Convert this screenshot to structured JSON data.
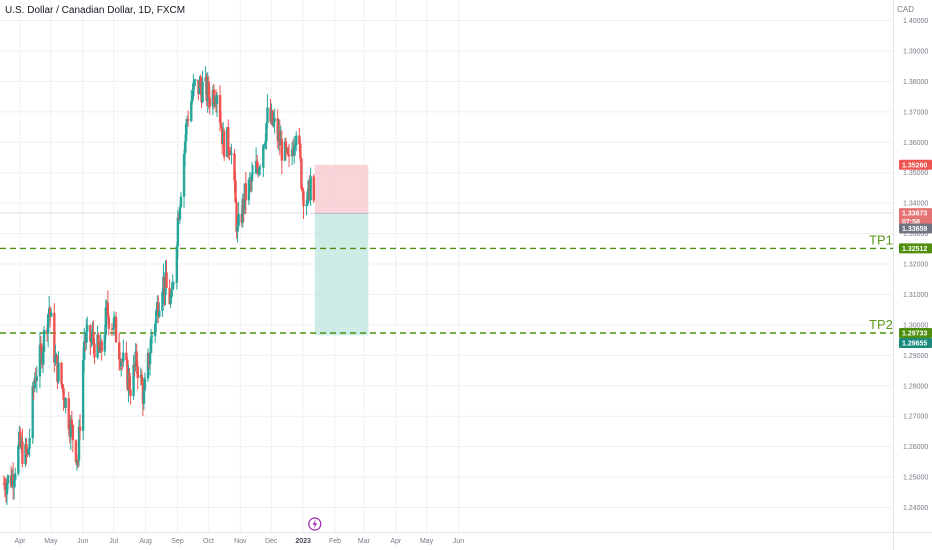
{
  "header": {
    "title": "U.S. Dollar / Canadian Dollar, 1D, FXCM",
    "currency": "CAD"
  },
  "colors": {
    "up": "#26a69a",
    "down": "#ef5350",
    "tp_line": "#4f8f0d",
    "tp_text": "#5b9a1b",
    "stop_zone": "#f8c9cf",
    "profit_zone": "#c5e8e2",
    "badge_stop": "#ef5350",
    "badge_last": "#e57373",
    "badge_entry": "#6f7480",
    "badge_tp1": "#4f8f0d",
    "badge_tp2_a": "#4f8f0d",
    "badge_tp2_b": "#1b8a7d",
    "grid": "#eef0f3"
  },
  "icons": {
    "event_marker": "lightning-icon"
  },
  "chart_data": {
    "type": "candlestick",
    "title": "U.S. Dollar / Canadian Dollar, 1D, FXCM",
    "ylim": [
      1.235,
      1.402
    ],
    "y_ticks": [
      "1.24000",
      "1.25000",
      "1.26000",
      "1.27000",
      "1.28000",
      "1.29000",
      "1.30000",
      "1.31000",
      "1.32000",
      "1.33000",
      "1.34000",
      "1.35000",
      "1.36000",
      "1.37000",
      "1.38000",
      "1.39000",
      "1.40000"
    ],
    "x_ticks": [
      "Apr",
      "May",
      "Jun",
      "Jul",
      "Aug",
      "Sep",
      "Oct",
      "Nov",
      "Dec",
      "2023",
      "Feb",
      "Mar",
      "Apr",
      "May",
      "Jun"
    ],
    "x_ticks_bold": [
      "2023"
    ],
    "price_path": [
      [
        "2022-03-28",
        1.248
      ],
      [
        "2022-04-05",
        1.25
      ],
      [
        "2022-04-12",
        1.26
      ],
      [
        "2022-04-20",
        1.256
      ],
      [
        "2022-04-27",
        1.283
      ],
      [
        "2022-05-03",
        1.29
      ],
      [
        "2022-05-11",
        1.306
      ],
      [
        "2022-05-17",
        1.288
      ],
      [
        "2022-05-25",
        1.278
      ],
      [
        "2022-05-31",
        1.268
      ],
      [
        "2022-06-08",
        1.256
      ],
      [
        "2022-06-14",
        1.295
      ],
      [
        "2022-06-22",
        1.295
      ],
      [
        "2022-06-30",
        1.29
      ],
      [
        "2022-07-06",
        1.304
      ],
      [
        "2022-07-13",
        1.3
      ],
      [
        "2022-07-21",
        1.288
      ],
      [
        "2022-07-29",
        1.28
      ],
      [
        "2022-08-04",
        1.288
      ],
      [
        "2022-08-11",
        1.276
      ],
      [
        "2022-08-18",
        1.295
      ],
      [
        "2022-08-29",
        1.315
      ],
      [
        "2022-09-07",
        1.307
      ],
      [
        "2022-09-13",
        1.335
      ],
      [
        "2022-09-22",
        1.368
      ],
      [
        "2022-09-29",
        1.378
      ],
      [
        "2022-10-07",
        1.378
      ],
      [
        "2022-10-14",
        1.375
      ],
      [
        "2022-10-21",
        1.378
      ],
      [
        "2022-10-27",
        1.36
      ],
      [
        "2022-11-03",
        1.36
      ],
      [
        "2022-11-10",
        1.33
      ],
      [
        "2022-11-17",
        1.342
      ],
      [
        "2022-11-25",
        1.348
      ],
      [
        "2022-12-02",
        1.355
      ],
      [
        "2022-12-09",
        1.368
      ],
      [
        "2022-12-16",
        1.365
      ],
      [
        "2022-12-23",
        1.358
      ],
      [
        "2022-12-30",
        1.352
      ],
      [
        "2023-01-06",
        1.366
      ],
      [
        "2023-01-12",
        1.345
      ],
      [
        "2023-01-17",
        1.34
      ],
      [
        "2023-01-20",
        1.348
      ],
      [
        "2023-01-23",
        1.3367
      ]
    ],
    "candles_visible": "approximately 215 daily candles from late March 2022 to 23 Jan 2023",
    "position": {
      "type": "short",
      "stop_loss": 1.3526,
      "entry": 1.33659,
      "target": 1.29655,
      "start_date": "2023-01-24",
      "end_date": "2023-03-17"
    },
    "horizontal_lines": [
      {
        "label": "TP1",
        "value": 1.32512
      },
      {
        "label": "TP2",
        "value": 1.29733
      }
    ],
    "price_labels": {
      "stop": "1.35260",
      "last_price": "1.33673",
      "countdown": "07:58",
      "entry": "1.33659",
      "tp1": "1.32512",
      "tp2": "1.29733",
      "target": "1.29655"
    },
    "grid": true,
    "legend": "none"
  }
}
